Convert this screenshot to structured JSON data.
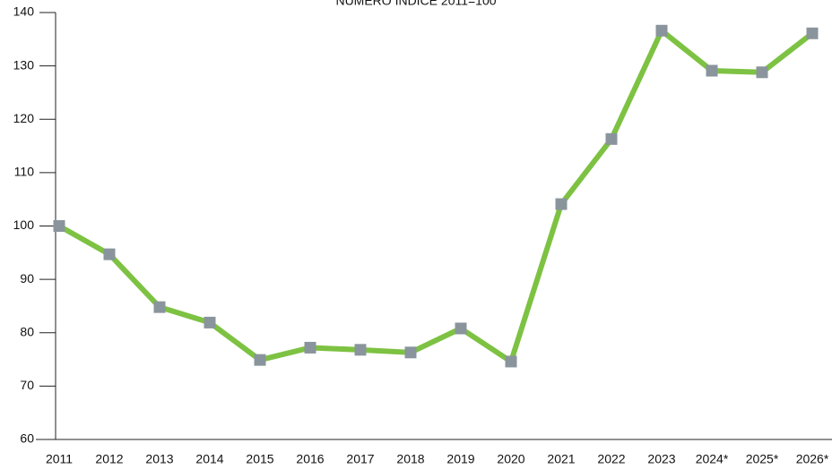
{
  "chart_data": {
    "type": "line",
    "title": "NÚMERO ÍNDICE 2011=100",
    "categories": [
      "2011",
      "2012",
      "2013",
      "2014",
      "2015",
      "2016",
      "2017",
      "2018",
      "2019",
      "2020",
      "2021",
      "2022",
      "2023",
      "2024*",
      "2025*",
      "2026*"
    ],
    "series": [
      {
        "name": "Índice",
        "color": "#7dc242",
        "marker_color": "#8a949c",
        "values": [
          100,
          94.7,
          84.8,
          81.9,
          74.9,
          77.2,
          76.8,
          76.3,
          80.8,
          74.6,
          104.1,
          116.3,
          136.6,
          129.1,
          128.8,
          136.1
        ]
      }
    ],
    "ylim": [
      60,
      140
    ],
    "yticks": [
      60,
      70,
      80,
      90,
      100,
      110,
      120,
      130,
      140
    ]
  }
}
